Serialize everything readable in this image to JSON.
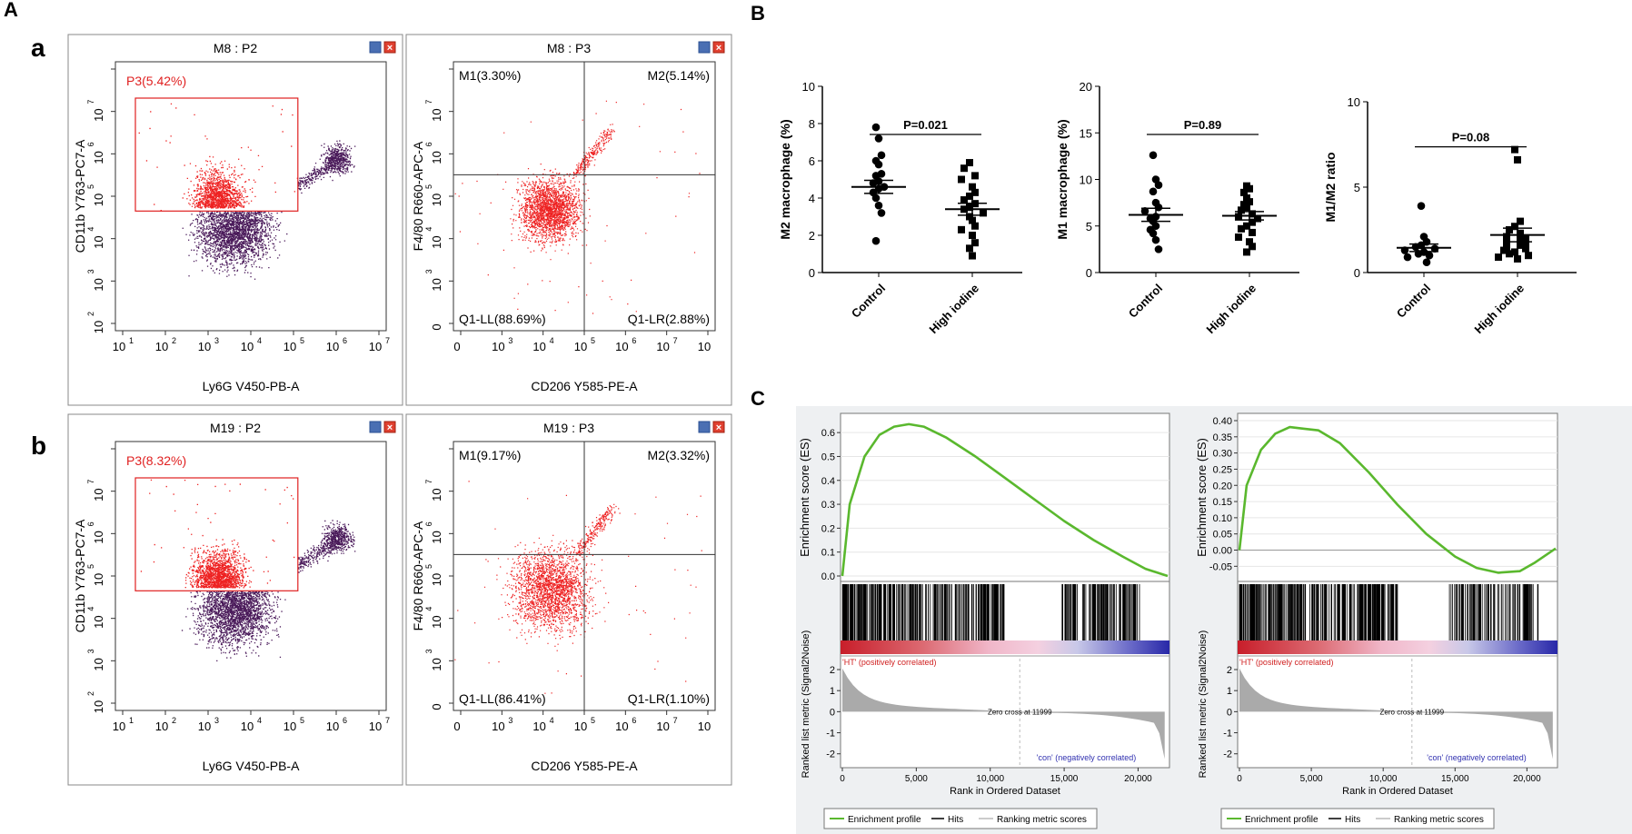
{
  "panel_labels": {
    "A": "A",
    "a": "a",
    "b": "b",
    "B": "B",
    "C": "C"
  },
  "flow": [
    {
      "title": "M8 : P2",
      "gate": "P3(5.42%)",
      "xlabel": "Ly6G V450-PB-A",
      "ylabel": "CD11b Y763-PC7-A"
    },
    {
      "title": "M8 : P3",
      "ul": "M1(3.30%)",
      "ur": "M2(5.14%)",
      "ll": "Q1-LL(88.69%)",
      "lr": "Q1-LR(2.88%)",
      "xlabel": "CD206 Y585-PE-A",
      "ylabel": "F4/80 R660-APC-A"
    },
    {
      "title": "M19 : P2",
      "gate": "P3(8.32%)",
      "xlabel": "Ly6G V450-PB-A",
      "ylabel": "CD11b Y763-PC7-A"
    },
    {
      "title": "M19 : P3",
      "ul": "M1(9.17%)",
      "ur": "M2(3.32%)",
      "ll": "Q1-LL(86.41%)",
      "lr": "Q1-LR(1.10%)",
      "xlabel": "CD206 Y585-PE-A",
      "ylabel": "F4/80 R660-APC-A"
    }
  ],
  "flow_axis": {
    "log_ticks": [
      "10",
      "10",
      "10",
      "10",
      "10",
      "10",
      "10"
    ],
    "log_exps": [
      "1",
      "2",
      "3",
      "4",
      "5",
      "6",
      "7"
    ],
    "cd206_ticks": [
      "0",
      "10",
      "10",
      "10",
      "10",
      "10",
      "10"
    ],
    "cd206_exps": [
      "",
      "3",
      "4",
      "5",
      "6",
      "7",
      ""
    ]
  },
  "chart_data": [
    {
      "type": "scatter",
      "ylabel": "M2 macrophage (%)",
      "categories": [
        "Control",
        "High iodine"
      ],
      "ylim": [
        0,
        10
      ],
      "yticks": [
        "0",
        "2",
        "4",
        "6",
        "8",
        "10"
      ],
      "pvalue": "P=0.021",
      "groups": [
        [
          7.8,
          7.2,
          6.3,
          6.0,
          5.8,
          5.3,
          5.2,
          4.9,
          4.8,
          4.6,
          4.5,
          4.3,
          4.0,
          3.6,
          3.2,
          1.7
        ],
        [
          5.9,
          5.6,
          5.2,
          5.0,
          4.6,
          4.3,
          4.1,
          3.9,
          3.7,
          3.5,
          3.4,
          3.2,
          3.0,
          2.8,
          2.5,
          2.3,
          2.0,
          1.6,
          1.3,
          0.9
        ]
      ],
      "means": [
        4.6,
        3.4
      ],
      "sems": [
        0.35,
        0.32
      ]
    },
    {
      "type": "scatter",
      "ylabel": "M1 macrophage (%)",
      "categories": [
        "Control",
        "High iodine"
      ],
      "ylim": [
        0,
        20
      ],
      "yticks": [
        "0",
        "5",
        "10",
        "15",
        "20"
      ],
      "pvalue": "P=0.89",
      "groups": [
        [
          12.6,
          10.0,
          9.4,
          8.7,
          7.5,
          7.0,
          6.6,
          6.0,
          5.8,
          5.5,
          5.0,
          4.6,
          4.2,
          3.5,
          2.5
        ],
        [
          9.3,
          9.0,
          8.6,
          8.0,
          7.6,
          7.3,
          7.0,
          6.7,
          6.3,
          6.0,
          5.8,
          5.4,
          5.0,
          4.7,
          4.3,
          3.8,
          3.3,
          2.8,
          2.2
        ]
      ],
      "means": [
        6.2,
        6.1
      ],
      "sems": [
        0.7,
        0.45
      ]
    },
    {
      "type": "scatter",
      "ylabel": "M1/M2 ratio",
      "categories": [
        "Control",
        "High iodine"
      ],
      "ylim": [
        0,
        10
      ],
      "yticks": [
        "0",
        "5",
        "10"
      ],
      "pvalue": "P=0.08",
      "groups": [
        [
          3.9,
          2.1,
          1.8,
          1.6,
          1.5,
          1.4,
          1.3,
          1.2,
          1.1,
          1.0,
          0.9,
          0.6
        ],
        [
          7.2,
          6.6,
          3.0,
          2.7,
          2.5,
          2.3,
          2.1,
          2.0,
          1.9,
          1.8,
          1.7,
          1.6,
          1.5,
          1.4,
          1.3,
          1.2,
          1.1,
          1.0,
          0.9,
          0.8
        ]
      ],
      "means": [
        1.45,
        2.2
      ],
      "sems": [
        0.22,
        0.4
      ]
    },
    {
      "type": "line",
      "ylabel": "Enrichment score (ES)",
      "xlabel": "Rank in Ordered Dataset",
      "ylim": [
        0,
        0.65
      ],
      "yticks": [
        "0.0",
        "0.1",
        "0.2",
        "0.3",
        "0.4",
        "0.5",
        "0.6"
      ],
      "ytick_values": [
        0,
        0.1,
        0.2,
        0.3,
        0.4,
        0.5,
        0.6
      ],
      "x": [
        0,
        500,
        1500,
        2500,
        3500,
        4500,
        5500,
        7000,
        9000,
        11000,
        13000,
        15000,
        17000,
        19000,
        20500,
        21500,
        22000
      ],
      "es": [
        0.0,
        0.3,
        0.5,
        0.59,
        0.625,
        0.635,
        0.625,
        0.58,
        0.5,
        0.41,
        0.32,
        0.23,
        0.15,
        0.08,
        0.03,
        0.01,
        0.0
      ],
      "ranked_ylabel": "Ranked list metric (Signal2Noise)",
      "ranked_yticks": [
        "2",
        "1",
        "0",
        "-1",
        "-2"
      ],
      "xticks": [
        "0",
        "5,000",
        "10,000",
        "15,000",
        "20,000"
      ],
      "zero_cross": "Zero cross at 11999",
      "pos_label": "'HT' (positively correlated)",
      "neg_label": "'con' (negatively correlated)",
      "legend": [
        "Enrichment profile",
        "Hits",
        "Ranking metric scores"
      ]
    },
    {
      "type": "line",
      "ylabel": "Enrichment score (ES)",
      "xlabel": "Rank in Ordered Dataset",
      "ylim": [
        -0.08,
        0.4
      ],
      "yticks": [
        "0.40",
        "0.35",
        "0.30",
        "0.25",
        "0.20",
        "0.15",
        "0.10",
        "0.05",
        "0.00",
        "-0.05"
      ],
      "ytick_values": [
        0.4,
        0.35,
        0.3,
        0.25,
        0.2,
        0.15,
        0.1,
        0.05,
        0,
        -0.05
      ],
      "x": [
        0,
        500,
        1500,
        2500,
        3500,
        4500,
        5500,
        7000,
        9000,
        11000,
        13000,
        15000,
        16500,
        18000,
        19500,
        20500,
        21500,
        22000
      ],
      "es": [
        0.0,
        0.2,
        0.31,
        0.36,
        0.38,
        0.375,
        0.37,
        0.33,
        0.24,
        0.14,
        0.05,
        -0.02,
        -0.055,
        -0.07,
        -0.065,
        -0.04,
        -0.01,
        0.005
      ],
      "ranked_ylabel": "Ranked list metric (Signal2Noise)",
      "ranked_yticks": [
        "2",
        "1",
        "0",
        "-1",
        "-2"
      ],
      "xticks": [
        "0",
        "5,000",
        "10,000",
        "15,000",
        "20,000"
      ],
      "zero_cross": "Zero cross at 11999",
      "pos_label": "'HT' (positively correlated)",
      "neg_label": "'con' (negatively correlated)",
      "legend": [
        "Enrichment profile",
        "Hits",
        "Ranking metric scores"
      ]
    }
  ],
  "colors": {
    "red": "#ee2222",
    "purple": "#4a1a5a",
    "green": "#5ab82e",
    "gate": "#e02020"
  }
}
